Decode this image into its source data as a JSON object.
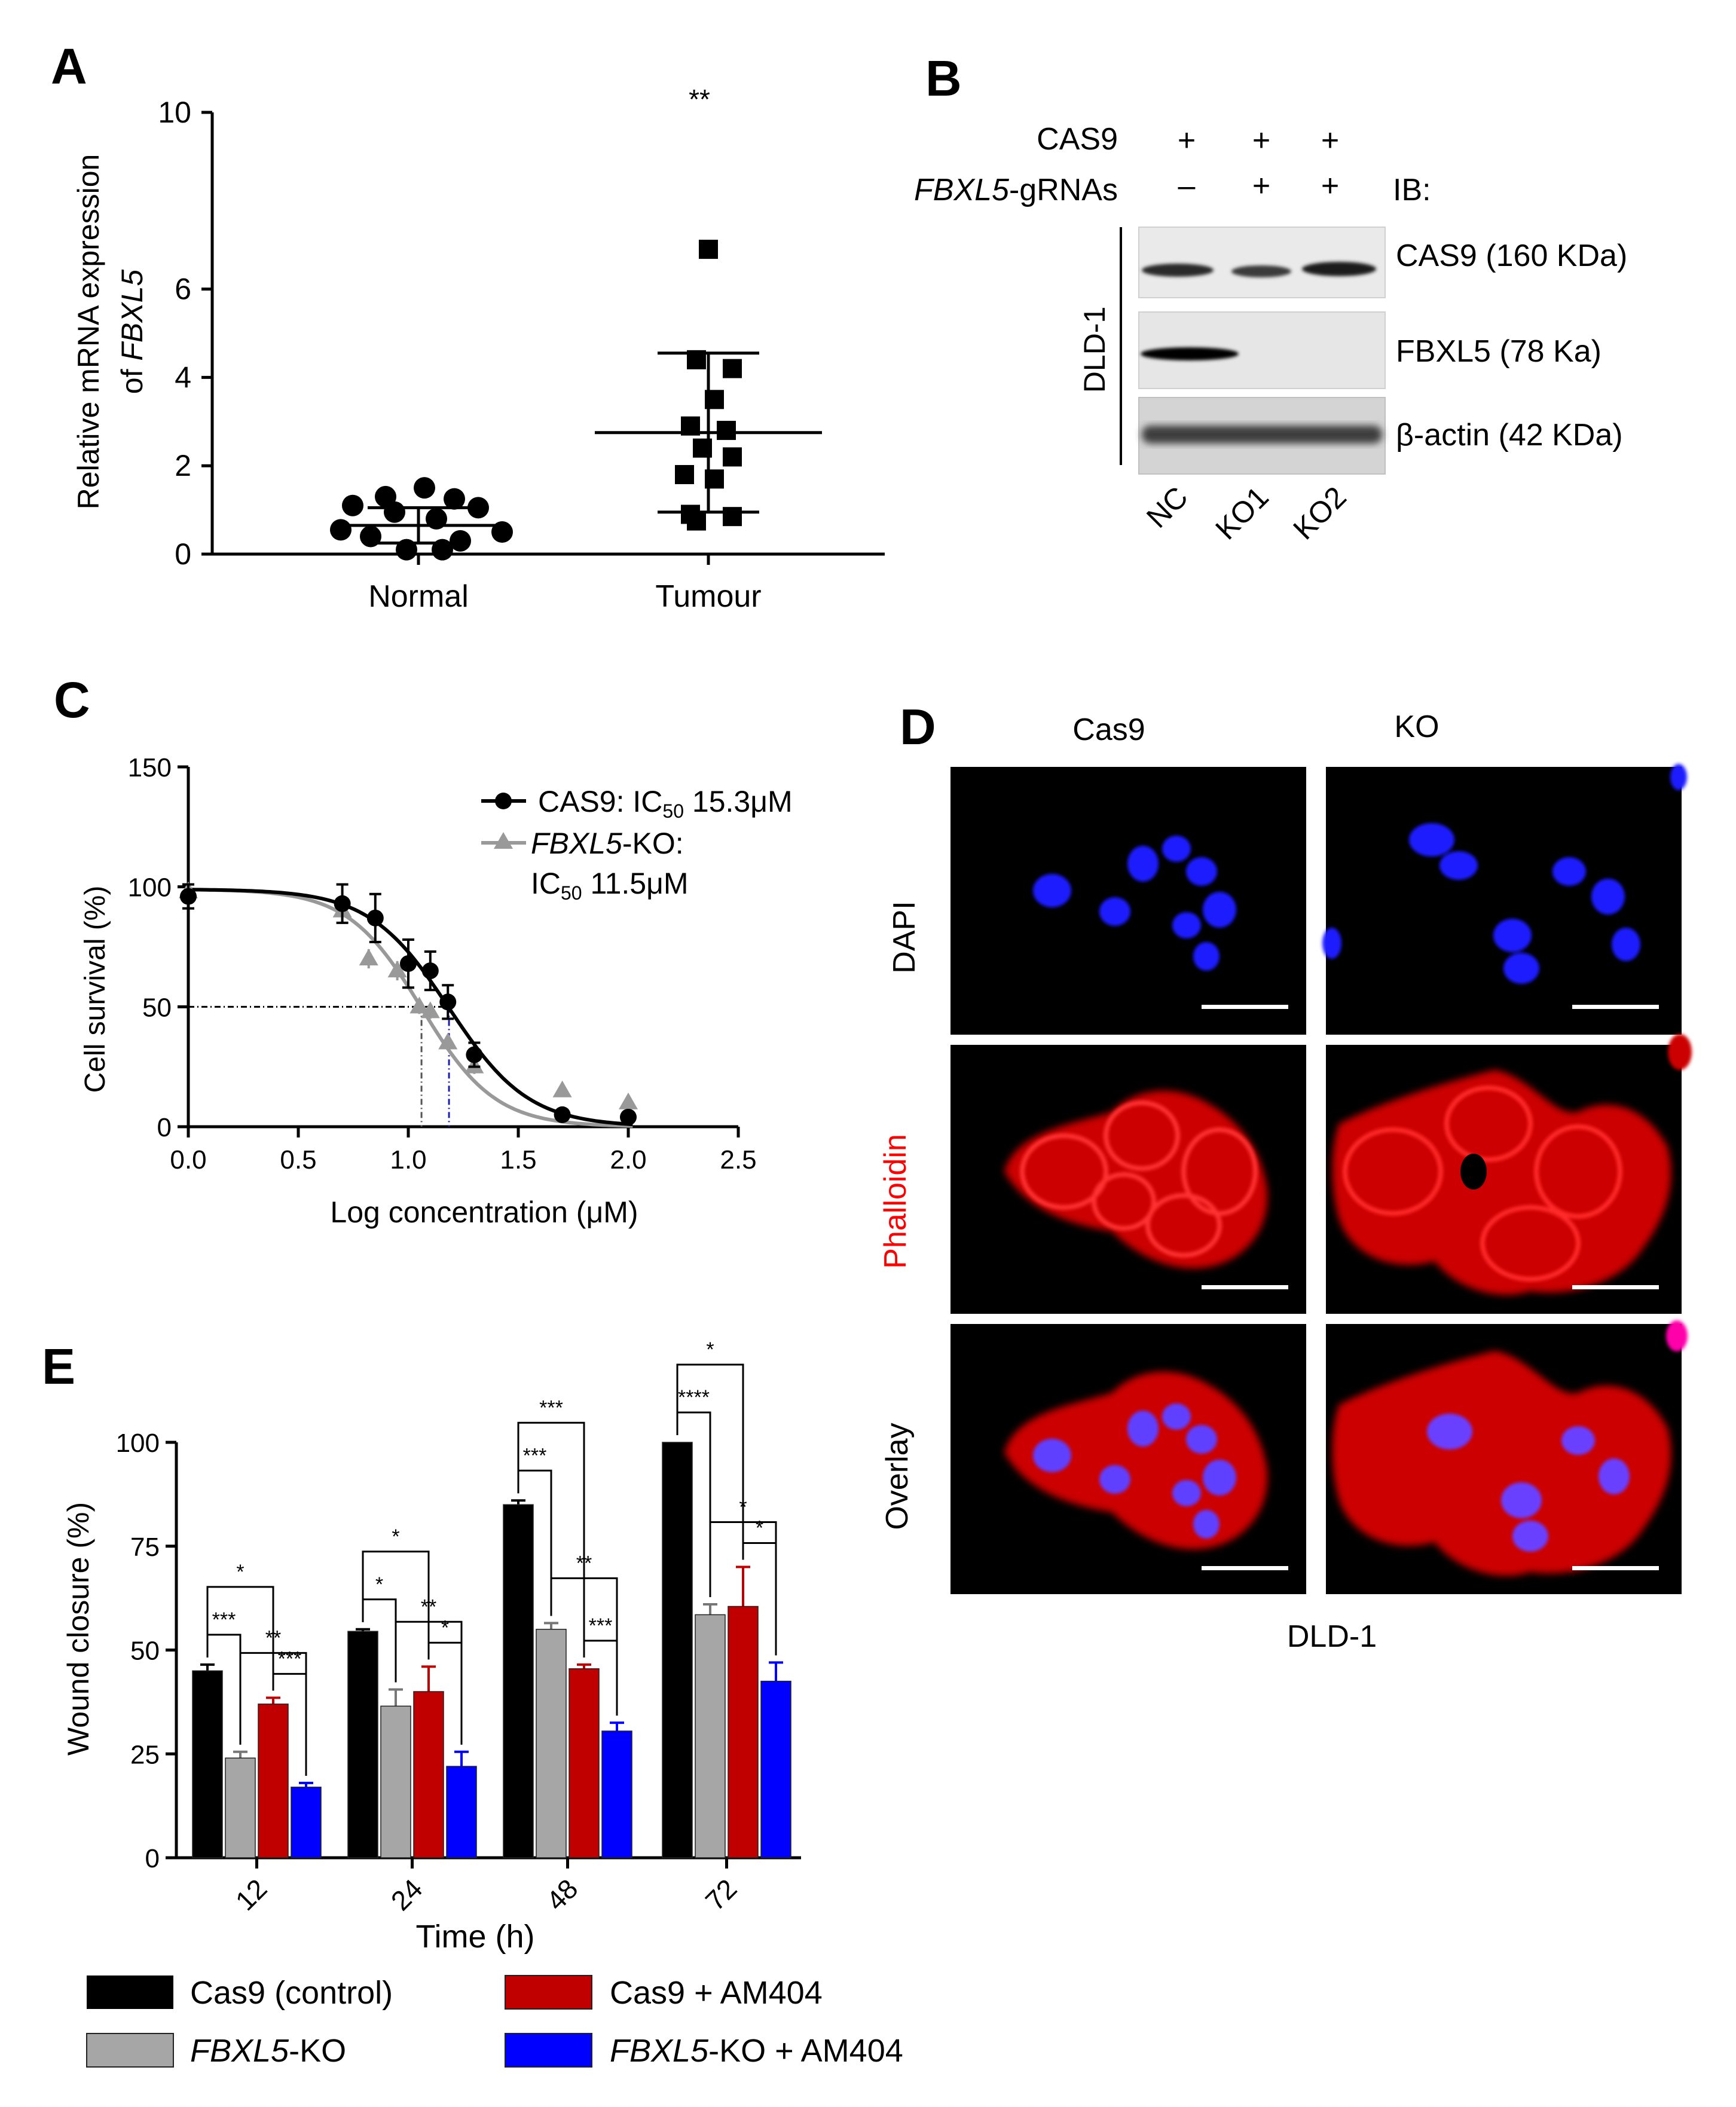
{
  "panel_labels": {
    "a": "A",
    "b": "B",
    "c": "C",
    "d": "D",
    "e": "E"
  },
  "panel_a": {
    "chart_data": {
      "type": "scatter",
      "ylabel_line1": "Relative mRNA expression",
      "ylabel_line2_prefix": "of ",
      "ylabel_line2_italic": "FBXL5",
      "ylim": [
        0,
        10
      ],
      "y_ticks": [
        0,
        2,
        4,
        6,
        10
      ],
      "categories": [
        "Normal",
        "Tumour"
      ],
      "significance": "**",
      "series": [
        {
          "name": "Normal",
          "marker": "circle",
          "values": [
            1.5,
            1.3,
            1.25,
            1.1,
            1.05,
            0.95,
            0.8,
            0.55,
            0.5,
            0.4,
            0.3,
            0.1,
            0.1
          ],
          "mean": 0.65,
          "sd_low": 0.25,
          "sd_high": 1.05
        },
        {
          "name": "Tumour",
          "marker": "square",
          "values": [
            6.9,
            4.4,
            4.2,
            3.5,
            2.9,
            2.8,
            2.4,
            2.2,
            1.8,
            1.7,
            0.9,
            0.85,
            0.75
          ],
          "mean": 2.75,
          "sd_low": 0.95,
          "sd_high": 4.55
        }
      ]
    }
  },
  "panel_b": {
    "rows": {
      "cas9": "CAS9",
      "gRNA_italic": "FBXL5",
      "gRNA_rest": "-gRNAs"
    },
    "cas9_signs": [
      "+",
      "+",
      "+"
    ],
    "grna_signs": [
      "–",
      "+",
      "+"
    ],
    "ib_label": "IB:",
    "cell_line": "DLD-1",
    "lanes": [
      "NC",
      "KO1",
      "KO2"
    ],
    "bands": [
      "CAS9 (160 KDa)",
      "FBXL5 (78 Ka)",
      "β-actin (42 KDa)"
    ]
  },
  "panel_c": {
    "chart_data": {
      "type": "line",
      "xlabel": "Log concentration (μM)",
      "ylabel": "Cell survival (%)",
      "xlim": [
        0,
        2.5
      ],
      "ylim": [
        0,
        150
      ],
      "x_ticks": [
        "0.0",
        "0.5",
        "1.0",
        "1.5",
        "2.0",
        "2.5"
      ],
      "y_ticks": [
        "0",
        "50",
        "100",
        "150"
      ],
      "legend": [
        {
          "name_prefix": "CAS9: IC",
          "name_sub": "50",
          "name_suffix": " 15.3μM"
        },
        {
          "name_italic": "FBXL5",
          "name_rest": "-KO:",
          "line2_prefix": "IC",
          "line2_sub": "50",
          "line2_suffix": " 11.5μM"
        }
      ],
      "series": [
        {
          "name": "CAS9",
          "color": "#000000",
          "marker": "circle",
          "log_ic50": 1.185,
          "x": [
            0.0,
            0.7,
            0.85,
            1.0,
            1.1,
            1.18,
            1.3,
            1.7,
            2.0
          ],
          "y": [
            96,
            93,
            87,
            68,
            65,
            52,
            30,
            5,
            4
          ],
          "err": [
            5,
            8,
            10,
            10,
            8,
            7,
            5,
            2,
            2
          ]
        },
        {
          "name": "FBXL5-KO",
          "color": "#999999",
          "marker": "triangle",
          "log_ic50": 1.06,
          "x": [
            0.0,
            0.7,
            0.82,
            0.95,
            1.05,
            1.1,
            1.18,
            1.3,
            1.7,
            2.0
          ],
          "y": [
            98,
            90,
            70,
            65,
            50,
            48,
            35,
            25,
            15,
            10
          ],
          "err": [
            3,
            5,
            4,
            4,
            3,
            3,
            3,
            3,
            2,
            2
          ]
        }
      ]
    }
  },
  "panel_d": {
    "columns": [
      "Cas9",
      "KO"
    ],
    "rows": [
      "DAPI",
      "Phalloidin",
      "Overlay"
    ],
    "phalloidin_color": "#ff0000",
    "cell_line": "DLD-1"
  },
  "panel_e": {
    "chart_data": {
      "type": "bar",
      "xlabel": "Time (h)",
      "ylabel": "Wound closure (%)",
      "ylim": [
        0,
        100
      ],
      "y_ticks": [
        "0",
        "25",
        "50",
        "75",
        "100"
      ],
      "categories": [
        "12",
        "24",
        "48",
        "72"
      ],
      "series": [
        {
          "name": "Cas9 (control)",
          "color": "#000000",
          "values": [
            45,
            54.5,
            85,
            100
          ],
          "err": [
            1.5,
            0.5,
            1,
            0
          ]
        },
        {
          "name_italic": "FBXL5",
          "name_rest": "-KO",
          "color": "#a6a6a6",
          "values": [
            24,
            36.5,
            55,
            58.5
          ],
          "err": [
            1.5,
            4,
            1.5,
            2.5
          ]
        },
        {
          "name": "Cas9 + AM404",
          "color": "#c00000",
          "values": [
            37,
            40,
            45.5,
            60.5
          ],
          "err": [
            1.5,
            6,
            1,
            9.5
          ]
        },
        {
          "name_italic": "FBXL5",
          "name_rest": "-KO + AM404",
          "color": "#0000ff",
          "values": [
            17,
            22,
            30.5,
            42.5
          ],
          "err": [
            1,
            3.5,
            2,
            4.5
          ]
        }
      ],
      "brackets": [
        {
          "group": 0,
          "from": 0,
          "to": 2,
          "label": "*"
        },
        {
          "group": 0,
          "from": 0,
          "to": 1,
          "label": "***"
        },
        {
          "group": 0,
          "from": 1,
          "to": 3,
          "label": "**"
        },
        {
          "group": 0,
          "from": 2,
          "to": 3,
          "label": "***"
        },
        {
          "group": 1,
          "from": 0,
          "to": 2,
          "label": "*"
        },
        {
          "group": 1,
          "from": 0,
          "to": 1,
          "label": "*"
        },
        {
          "group": 1,
          "from": 1,
          "to": 3,
          "label": "**"
        },
        {
          "group": 1,
          "from": 2,
          "to": 3,
          "label": "*"
        },
        {
          "group": 2,
          "from": 0,
          "to": 2,
          "label": "***"
        },
        {
          "group": 2,
          "from": 0,
          "to": 1,
          "label": "***"
        },
        {
          "group": 2,
          "from": 1,
          "to": 3,
          "label": "**"
        },
        {
          "group": 2,
          "from": 2,
          "to": 3,
          "label": "***"
        },
        {
          "group": 3,
          "from": 0,
          "to": 2,
          "label": "*"
        },
        {
          "group": 3,
          "from": 0,
          "to": 1,
          "label": "****"
        },
        {
          "group": 3,
          "from": 1,
          "to": 3,
          "label": "*"
        },
        {
          "group": 3,
          "from": 2,
          "to": 3,
          "label": "*"
        }
      ]
    }
  }
}
